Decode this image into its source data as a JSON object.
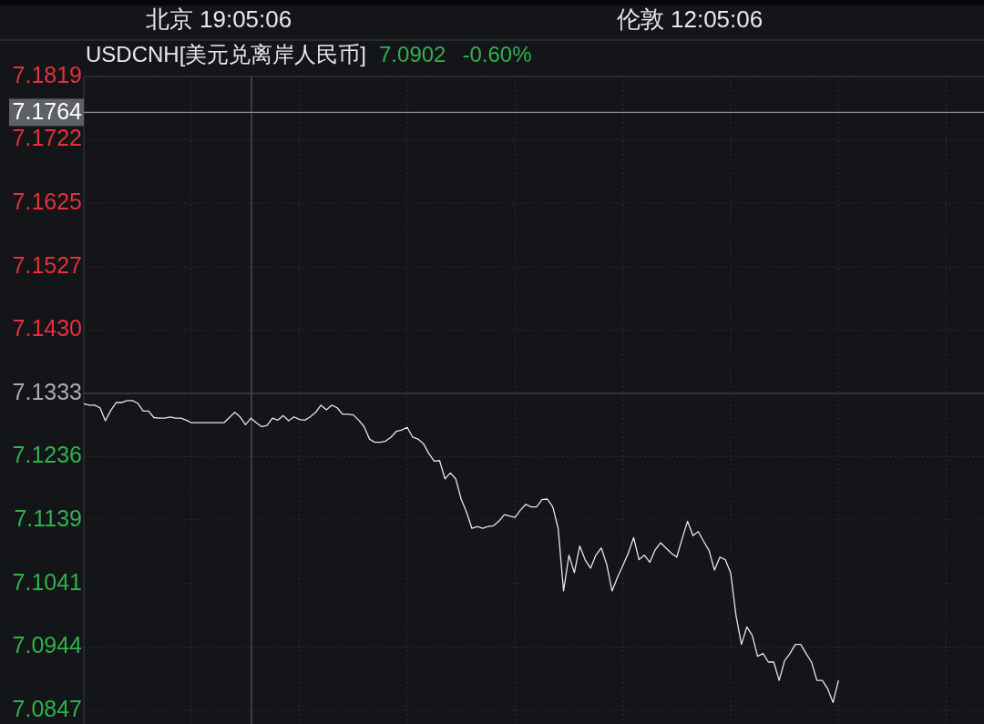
{
  "chart_data": {
    "type": "line",
    "title": "USDCNH[美元兑离岸人民币]",
    "annotations": [
      "北京 19:05:06",
      "伦敦 12:05:06",
      "7.0902",
      "-0.60%"
    ],
    "categories": [
      null,
      null,
      null,
      null,
      null,
      null,
      null,
      null,
      null,
      null,
      null,
      null,
      null,
      null,
      null,
      null,
      null,
      null,
      null,
      null,
      null,
      null,
      null,
      null,
      null,
      null,
      null,
      null,
      null,
      null,
      null,
      null,
      null,
      null,
      null,
      null,
      null,
      null,
      null,
      null,
      null,
      null,
      null,
      null,
      null,
      null,
      null,
      null,
      null,
      null,
      null,
      null,
      null,
      null,
      null,
      null,
      null,
      null,
      null,
      null,
      null,
      null,
      null,
      null,
      null,
      null,
      null,
      null,
      null,
      null,
      null,
      null,
      null,
      null,
      null,
      null,
      null,
      null,
      null,
      null,
      null,
      null,
      null,
      null,
      null,
      null,
      null,
      null,
      null,
      null,
      null,
      null,
      null,
      null,
      null,
      null,
      null,
      null,
      null,
      null,
      null,
      null,
      null,
      null,
      null,
      null,
      null,
      null,
      null,
      null,
      null,
      null,
      null,
      null,
      null,
      null,
      null,
      null,
      null,
      null,
      null,
      null,
      null,
      null,
      null,
      null,
      null,
      null,
      null,
      null,
      null,
      null,
      null,
      null,
      null,
      null,
      null,
      null,
      null,
      null,
      null,
      null,
      null,
      null,
      null,
      null,
      null,
      null,
      null,
      null,
      null,
      null,
      null,
      null,
      null,
      null,
      null,
      null,
      null,
      null,
      null,
      null,
      null,
      null,
      null,
      null,
      null,
      null
    ],
    "series": [
      {
        "color": "#e6e6e6",
        "values": [
          7.1317,
          7.1315,
          7.1315,
          7.1311,
          7.1291,
          7.1307,
          7.1319,
          7.1319,
          7.1322,
          7.1322,
          7.1318,
          7.1306,
          7.1306,
          7.1296,
          7.1295,
          7.1295,
          7.1297,
          7.1295,
          7.1295,
          7.1292,
          7.1288,
          7.1288,
          7.1288,
          7.1288,
          7.1288,
          7.1288,
          7.1288,
          7.1296,
          7.1304,
          7.1297,
          7.1285,
          7.1295,
          7.1288,
          7.1282,
          7.1284,
          7.1295,
          7.1292,
          7.1299,
          7.1291,
          7.1297,
          7.1293,
          7.1292,
          7.1297,
          7.1304,
          7.1315,
          7.1308,
          7.1315,
          7.1311,
          7.1301,
          7.1301,
          7.13,
          7.1292,
          7.1282,
          7.1263,
          7.1258,
          7.1258,
          7.126,
          7.1266,
          7.1275,
          7.1277,
          7.1281,
          7.1266,
          7.1263,
          7.1256,
          7.1241,
          7.1229,
          7.123,
          7.1202,
          7.1211,
          7.1202,
          7.1171,
          7.1151,
          7.1126,
          7.1129,
          7.1126,
          7.1129,
          7.113,
          7.1137,
          7.1147,
          7.1145,
          7.1143,
          7.1154,
          7.1163,
          7.1159,
          7.1159,
          7.117,
          7.1171,
          7.1159,
          7.1126,
          7.103,
          7.1085,
          7.1058,
          7.1099,
          7.1078,
          7.1065,
          7.1085,
          7.1096,
          7.1071,
          7.103,
          7.1051,
          7.1069,
          7.1088,
          7.1112,
          7.1078,
          7.1085,
          7.1074,
          7.1093,
          7.1104,
          7.1096,
          7.1088,
          7.1082,
          7.111,
          7.1137,
          7.1115,
          7.1121,
          7.1106,
          7.1092,
          7.1062,
          7.1082,
          7.1078,
          7.1058,
          7.0992,
          7.0948,
          7.0975,
          7.0962,
          7.093,
          7.0934,
          7.0921,
          7.0921,
          7.0893,
          7.0923,
          7.0934,
          7.0948,
          7.0948,
          7.0934,
          7.0921,
          7.0893,
          7.0893,
          7.088,
          7.0859,
          7.0893,
          null,
          null,
          null,
          null,
          null,
          null,
          null,
          null,
          null,
          null,
          null,
          null,
          null,
          null,
          null,
          null,
          null,
          null,
          null,
          null,
          null,
          null,
          null,
          null,
          null,
          null,
          null
        ]
      }
    ],
    "ylim": [
      7.0847,
      7.1819
    ],
    "yticks": [
      7.1819,
      {
        "value": 7.1722,
        "label": "7.1722"
      },
      {
        "value": 7.1625,
        "label": "7.1625"
      },
      {
        "value": 7.1527,
        "label": "7.1527"
      },
      {
        "value": 7.143,
        "label": "7.1430"
      },
      {
        "value": 7.1333,
        "label": "7.1333"
      },
      {
        "value": 7.1236,
        "label": "7.1236"
      },
      {
        "value": 7.1139,
        "label": "7.1139"
      },
      {
        "value": 7.1041,
        "label": "7.1041"
      },
      {
        "value": 7.0944,
        "label": "7.0944"
      },
      {
        "value": 7.0847,
        "label": "7.0847"
      }
    ],
    "ref_lines": [
      {
        "axis": "y",
        "value": 7.1764,
        "label": "7.1764",
        "color": "#8a8d92"
      },
      {
        "axis": "y",
        "value": 7.1333,
        "color": "#4a4e55"
      }
    ],
    "grid": true,
    "marker": "none",
    "line_style": "solid"
  }
}
